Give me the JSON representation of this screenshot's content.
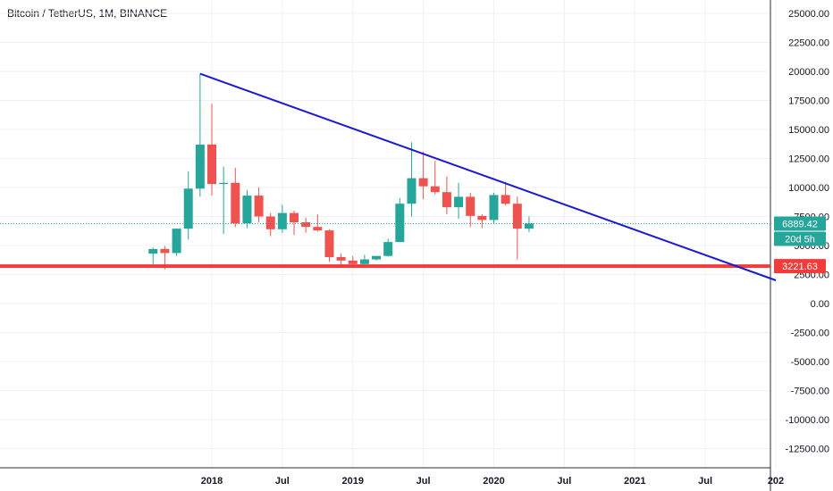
{
  "header": {
    "title": "Bitcoin / TetherUS, 1M, BINANCE"
  },
  "colors": {
    "up": "#26a69a",
    "down": "#ef5350",
    "trendline": "#1a1ad0",
    "support": "#f23b3b",
    "grid": "#edf0f4",
    "axis_text": "#131722",
    "current_price_line": "#26a69a"
  },
  "chart_data": {
    "type": "candlestick",
    "title": "Bitcoin / TetherUS, 1M, BINANCE",
    "xlabel": "",
    "ylabel": "",
    "ylim": [
      -13500,
      26000
    ],
    "grid": true,
    "x_range": [
      "2017-06",
      "2022-01"
    ],
    "x_ticks": [
      {
        "label": "2018",
        "date": "2018-01"
      },
      {
        "label": "Jul",
        "date": "2018-07"
      },
      {
        "label": "2019",
        "date": "2019-01"
      },
      {
        "label": "Jul",
        "date": "2019-07"
      },
      {
        "label": "2020",
        "date": "2020-01"
      },
      {
        "label": "Jul",
        "date": "2020-07"
      },
      {
        "label": "2021",
        "date": "2021-01"
      },
      {
        "label": "Jul",
        "date": "2021-07"
      },
      {
        "label": "202",
        "date": "2022-01"
      }
    ],
    "y_ticks": [
      "25000.00",
      "22500.00",
      "20000.00",
      "17500.00",
      "15000.00",
      "12500.00",
      "10000.00",
      "7500.00",
      "5000.00",
      "2500.00",
      "0.00",
      "-2500.00",
      "-5000.00",
      "-7500.00",
      "-10000.00",
      "-12500.00"
    ],
    "y_tick_values": [
      25000,
      22500,
      20000,
      17500,
      15000,
      12500,
      10000,
      7500,
      5000,
      2500,
      0,
      -2500,
      -5000,
      -7500,
      -10000,
      -12500
    ],
    "candles": [
      {
        "date": "2017-08",
        "open": 4300,
        "high": 4800,
        "low": 3400,
        "close": 4700
      },
      {
        "date": "2017-09",
        "open": 4700,
        "high": 4950,
        "low": 2950,
        "close": 4350
      },
      {
        "date": "2017-10",
        "open": 4350,
        "high": 6470,
        "low": 4100,
        "close": 6450
      },
      {
        "date": "2017-11",
        "open": 6450,
        "high": 11400,
        "low": 5500,
        "close": 9900
      },
      {
        "date": "2017-12",
        "open": 9900,
        "high": 19800,
        "low": 9200,
        "close": 13700
      },
      {
        "date": "2018-01",
        "open": 13700,
        "high": 17200,
        "low": 9300,
        "close": 10300
      },
      {
        "date": "2018-02",
        "open": 10300,
        "high": 11800,
        "low": 6000,
        "close": 10400
      },
      {
        "date": "2018-03",
        "open": 10400,
        "high": 11700,
        "low": 6600,
        "close": 6900
      },
      {
        "date": "2018-04",
        "open": 6900,
        "high": 9800,
        "low": 6500,
        "close": 9300
      },
      {
        "date": "2018-05",
        "open": 9300,
        "high": 10000,
        "low": 7000,
        "close": 7500
      },
      {
        "date": "2018-06",
        "open": 7500,
        "high": 7800,
        "low": 5800,
        "close": 6400
      },
      {
        "date": "2018-07",
        "open": 6400,
        "high": 8500,
        "low": 6100,
        "close": 7800
      },
      {
        "date": "2018-08",
        "open": 7800,
        "high": 8000,
        "low": 5900,
        "close": 7000
      },
      {
        "date": "2018-09",
        "open": 7000,
        "high": 7400,
        "low": 6100,
        "close": 6600
      },
      {
        "date": "2018-10",
        "open": 6600,
        "high": 7700,
        "low": 6200,
        "close": 6300
      },
      {
        "date": "2018-11",
        "open": 6300,
        "high": 6400,
        "low": 3600,
        "close": 4000
      },
      {
        "date": "2018-12",
        "open": 4000,
        "high": 4300,
        "low": 3200,
        "close": 3700
      },
      {
        "date": "2019-01",
        "open": 3700,
        "high": 4100,
        "low": 3300,
        "close": 3400
      },
      {
        "date": "2019-02",
        "open": 3400,
        "high": 4200,
        "low": 3350,
        "close": 3800
      },
      {
        "date": "2019-03",
        "open": 3800,
        "high": 4100,
        "low": 3700,
        "close": 4100
      },
      {
        "date": "2019-04",
        "open": 4100,
        "high": 5600,
        "low": 4050,
        "close": 5300
      },
      {
        "date": "2019-05",
        "open": 5300,
        "high": 9100,
        "low": 5300,
        "close": 8600
      },
      {
        "date": "2019-06",
        "open": 8600,
        "high": 13900,
        "low": 7500,
        "close": 10800
      },
      {
        "date": "2019-07",
        "open": 10800,
        "high": 13100,
        "low": 9000,
        "close": 10100
      },
      {
        "date": "2019-08",
        "open": 10100,
        "high": 12300,
        "low": 9400,
        "close": 9600
      },
      {
        "date": "2019-09",
        "open": 9600,
        "high": 10950,
        "low": 7700,
        "close": 8300
      },
      {
        "date": "2019-10",
        "open": 8300,
        "high": 10400,
        "low": 7300,
        "close": 9200
      },
      {
        "date": "2019-11",
        "open": 9200,
        "high": 9550,
        "low": 6600,
        "close": 7550
      },
      {
        "date": "2019-12",
        "open": 7550,
        "high": 7700,
        "low": 6500,
        "close": 7200
      },
      {
        "date": "2020-01",
        "open": 7200,
        "high": 9550,
        "low": 6850,
        "close": 9350
      },
      {
        "date": "2020-02",
        "open": 9350,
        "high": 10500,
        "low": 8450,
        "close": 8600
      },
      {
        "date": "2020-03",
        "open": 8600,
        "high": 9200,
        "low": 3800,
        "close": 6450
      },
      {
        "date": "2020-04",
        "open": 6450,
        "high": 7500,
        "low": 6150,
        "close": 6900
      }
    ],
    "trendline": {
      "start": {
        "date": "2017-12",
        "value": 19800
      },
      "end": {
        "date": "2022-01",
        "value": 2000
      }
    },
    "support": {
      "value": 3221.63,
      "label": "3221.63"
    },
    "current_price": {
      "value": 6889.42,
      "label": "6889.42",
      "countdown": "20d 5h"
    }
  }
}
